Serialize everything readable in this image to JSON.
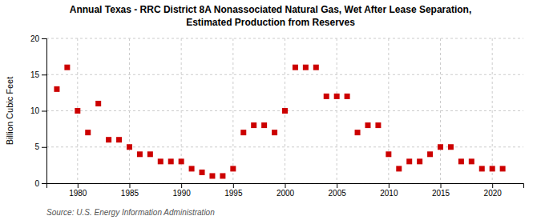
{
  "chart_data": {
    "type": "scatter",
    "title": "Annual Texas - RRC District 8A Nonassociated Natural Gas, Wet After Lease Separation,",
    "subtitle": "Estimated Production from Reserves",
    "ylabel": "Billion Cubic Feet",
    "annotation": "Source: U.S. Energy Information Administration",
    "color": "#cc0000",
    "marker": "square",
    "grid": true,
    "x": [
      1978,
      1979,
      1980,
      1981,
      1982,
      1983,
      1984,
      1985,
      1986,
      1987,
      1988,
      1989,
      1990,
      1991,
      1992,
      1993,
      1994,
      1995,
      1996,
      1997,
      1998,
      1999,
      2000,
      2001,
      2002,
      2003,
      2004,
      2005,
      2006,
      2007,
      2008,
      2009,
      2010,
      2011,
      2012,
      2013,
      2014,
      2015,
      2016,
      2017,
      2018,
      2019,
      2020,
      2021
    ],
    "values": [
      13,
      16,
      10,
      7,
      11,
      6,
      6,
      5,
      4,
      4,
      3,
      3,
      3,
      2,
      1.5,
      1,
      1,
      2,
      7,
      8,
      8,
      7,
      10,
      16,
      16,
      16,
      12,
      12,
      12,
      7,
      8,
      8,
      4,
      2,
      3,
      3,
      4,
      5,
      5,
      3,
      3,
      2,
      2,
      2
    ],
    "xlim": [
      1977,
      2023
    ],
    "ylim": [
      0,
      20
    ],
    "xticks": [
      1980,
      1985,
      1990,
      1995,
      2000,
      2005,
      2010,
      2015,
      2020
    ],
    "yticks": [
      0,
      5,
      10,
      15,
      20
    ]
  }
}
